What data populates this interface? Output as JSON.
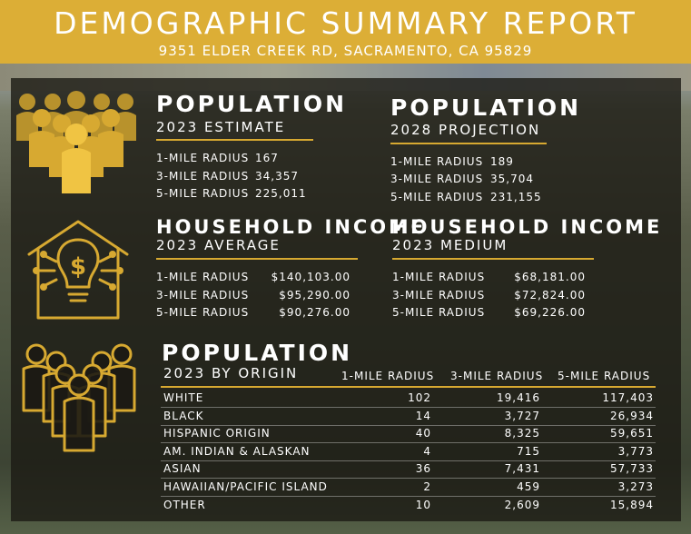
{
  "header": {
    "title": "DEMOGRAPHIC SUMMARY REPORT",
    "address": "9351 ELDER CREEK RD, SACRAMENTO, CA 95829"
  },
  "population_2023": {
    "heading": "POPULATION",
    "subheading": "2023 ESTIMATE",
    "rows": [
      {
        "label": "1-MILE RADIUS",
        "value": "167"
      },
      {
        "label": "3-MILE RADIUS",
        "value": "34,357"
      },
      {
        "label": "5-MILE RADIUS",
        "value": "225,011"
      }
    ]
  },
  "population_2028": {
    "heading": "POPULATION",
    "subheading": "2028 PROJECTION",
    "rows": [
      {
        "label": "1-MILE RADIUS",
        "value": "189"
      },
      {
        "label": "3-MILE RADIUS",
        "value": "35,704"
      },
      {
        "label": "5-MILE RADIUS",
        "value": "231,155"
      }
    ]
  },
  "income_average": {
    "heading": "HOUSEHOLD INCOME",
    "subheading": "2023 AVERAGE",
    "rows": [
      {
        "label": "1-MILE RADIUS",
        "value": "$140,103.00"
      },
      {
        "label": "3-MILE RADIUS",
        "value": "$95,290.00"
      },
      {
        "label": "5-MILE RADIUS",
        "value": "$90,276.00"
      }
    ]
  },
  "income_median": {
    "heading": "HOUSEHOLD INCOME",
    "subheading": "2023 MEDIUM",
    "rows": [
      {
        "label": "1-MILE RADIUS",
        "value": "$68,181.00"
      },
      {
        "label": "3-MILE RADIUS",
        "value": "$72,824.00"
      },
      {
        "label": "5-MILE RADIUS",
        "value": "$69,226.00"
      }
    ]
  },
  "origin": {
    "heading": "POPULATION",
    "subheading": "2023 BY ORIGIN",
    "columns": [
      "1-MILE RADIUS",
      "3-MILE RADIUS",
      "5-MILE RADIUS"
    ],
    "rows": [
      {
        "label": "WHITE",
        "v1": "102",
        "v3": "19,416",
        "v5": "117,403"
      },
      {
        "label": "BLACK",
        "v1": "14",
        "v3": "3,727",
        "v5": "26,934"
      },
      {
        "label": "HISPANIC ORIGIN",
        "v1": "40",
        "v3": "8,325",
        "v5": "59,651"
      },
      {
        "label": "AM. INDIAN & ALASKAN",
        "v1": "4",
        "v3": "715",
        "v5": "3,773"
      },
      {
        "label": "ASIAN",
        "v1": "36",
        "v3": "7,431",
        "v5": "57,733"
      },
      {
        "label": "HAWAIIAN/PACIFIC ISLAND",
        "v1": "2",
        "v3": "459",
        "v5": "3,273"
      },
      {
        "label": "OTHER",
        "v1": "10",
        "v3": "2,609",
        "v5": "15,894"
      }
    ]
  },
  "icons": {
    "crowd": "crowd-icon",
    "house_money": "house-money-icon",
    "group_outline": "group-outline-icon"
  },
  "colors": {
    "accent": "#dcae36",
    "text": "#ffffff"
  }
}
